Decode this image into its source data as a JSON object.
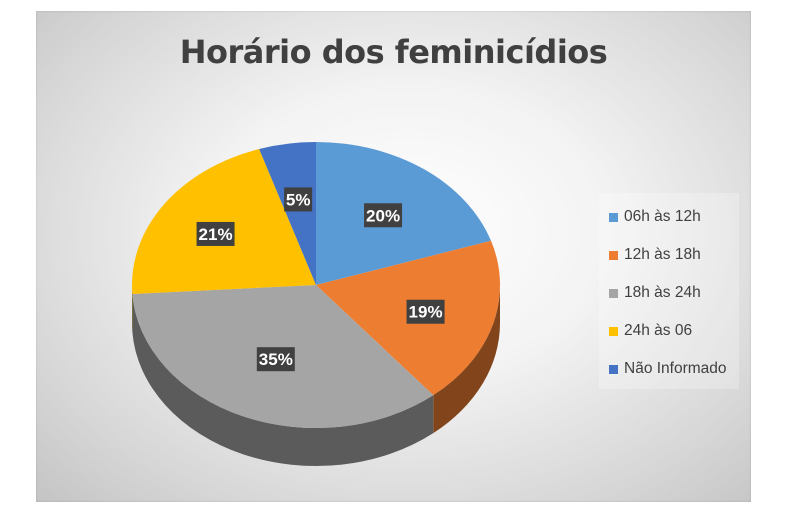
{
  "chart_data": {
    "type": "pie",
    "title": "Horário dos feminicídios",
    "categories": [
      "06h às 12h",
      "12h às 18h",
      "18h às 24h",
      "24h às 06",
      "Não Informado"
    ],
    "values": [
      20,
      19,
      35,
      21,
      5
    ],
    "value_labels": [
      "20%",
      "19%",
      "35%",
      "21%",
      "5%"
    ],
    "colors": [
      "#5b9bd5",
      "#ed7d31",
      "#a5a5a5",
      "#ffc000",
      "#4472c4"
    ],
    "legend_position": "right",
    "style": "3d-pie"
  }
}
